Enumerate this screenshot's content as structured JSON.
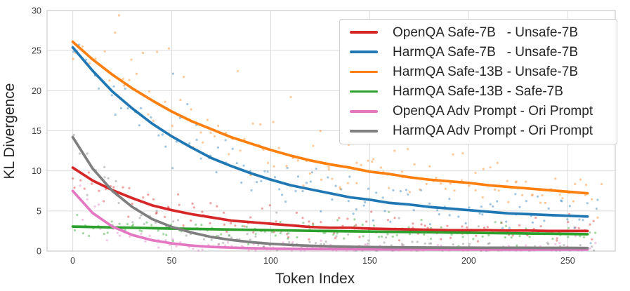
{
  "chart_data": {
    "type": "line",
    "title": "",
    "xlabel": "Token Index",
    "ylabel": "KL Divergence",
    "xlim": [
      -13,
      274
    ],
    "ylim": [
      0,
      30
    ],
    "x_ticks": [
      0,
      50,
      100,
      150,
      200,
      250
    ],
    "y_ticks": [
      0,
      5,
      10,
      15,
      20,
      25,
      30
    ],
    "grid": true,
    "grid_color": "#dcdcdc",
    "spine_color": "#d0d0d0",
    "tick_label_color": "#3d3d3d",
    "legend_position": "upper right",
    "x": [
      0,
      10,
      20,
      30,
      40,
      50,
      60,
      70,
      80,
      90,
      100,
      110,
      120,
      130,
      140,
      150,
      160,
      170,
      180,
      190,
      200,
      210,
      220,
      230,
      240,
      250,
      260
    ],
    "series": [
      {
        "name": "OpenQA Safe-7B   - Unsafe-7B",
        "color": "#d62728",
        "values": [
          10.4,
          8.8,
          7.6,
          6.6,
          5.7,
          5.1,
          4.6,
          4.2,
          3.8,
          3.6,
          3.4,
          3.2,
          3.0,
          2.9,
          2.9,
          2.8,
          2.75,
          2.7,
          2.65,
          2.6,
          2.6,
          2.6,
          2.55,
          2.55,
          2.5,
          2.5,
          2.5
        ],
        "scatter": {
          "seed": 11,
          "count": 128,
          "x_max": 266,
          "rel_noise": 0.18,
          "abs_noise": 0.55,
          "outlier_rate": 0.06,
          "outlier_scale": 1.7
        }
      },
      {
        "name": "HarmQA Safe-7B   - Unsafe-7B",
        "color": "#1f77b4",
        "values": [
          25.4,
          22.5,
          19.9,
          17.8,
          15.9,
          14.3,
          12.9,
          11.6,
          10.6,
          9.7,
          8.9,
          8.2,
          7.7,
          7.2,
          6.7,
          6.4,
          6.0,
          5.8,
          5.5,
          5.3,
          5.1,
          4.9,
          4.7,
          4.6,
          4.5,
          4.4,
          4.3
        ],
        "scatter": {
          "seed": 22,
          "count": 130,
          "x_max": 268,
          "rel_noise": 0.06,
          "abs_noise": 1.35,
          "outlier_rate": 0.06,
          "outlier_scale": 1.9
        }
      },
      {
        "name": "HarmQA Safe-13B - Unsafe-7B",
        "color": "#ff7f0e",
        "values": [
          26.1,
          23.9,
          22.0,
          20.3,
          18.8,
          17.4,
          16.2,
          15.2,
          14.2,
          13.4,
          12.6,
          11.9,
          11.3,
          10.8,
          10.4,
          9.9,
          9.6,
          9.2,
          8.9,
          8.7,
          8.5,
          8.2,
          8.0,
          7.8,
          7.6,
          7.4,
          7.2
        ],
        "scatter": {
          "seed": 33,
          "count": 130,
          "x_max": 268,
          "rel_noise": 0.06,
          "abs_noise": 1.4,
          "outlier_rate": 0.06,
          "outlier_scale": 1.9
        }
      },
      {
        "name": "HarmQA Safe-13B - Safe-7B",
        "color": "#2ca02c",
        "values": [
          3.05,
          3.0,
          2.95,
          2.9,
          2.85,
          2.8,
          2.76,
          2.72,
          2.68,
          2.64,
          2.6,
          2.56,
          2.52,
          2.49,
          2.46,
          2.43,
          2.4,
          2.37,
          2.34,
          2.31,
          2.28,
          2.25,
          2.22,
          2.19,
          2.16,
          2.13,
          2.1
        ],
        "scatter": {
          "seed": 44,
          "count": 126,
          "x_max": 266,
          "rel_noise": 0.12,
          "abs_noise": 0.55,
          "outlier_rate": 0.03,
          "outlier_scale": 1.0
        }
      },
      {
        "name": "OpenQA Adv Prompt - Ori Prompt",
        "color": "#e377c2",
        "values": [
          7.5,
          4.75,
          3.05,
          2.0,
          1.35,
          0.95,
          0.68,
          0.52,
          0.42,
          0.35,
          0.3,
          0.27,
          0.25,
          0.24,
          0.23,
          0.22,
          0.21,
          0.2,
          0.2,
          0.19,
          0.19,
          0.19,
          0.18,
          0.18,
          0.18,
          0.18,
          0.18
        ],
        "scatter": {
          "seed": 55,
          "count": 126,
          "x_max": 266,
          "rel_noise": 0.3,
          "abs_noise": 0.35,
          "outlier_rate": 0.04,
          "outlier_scale": 1.1
        }
      },
      {
        "name": "HarmQA Adv Prompt - Ori Prompt",
        "color": "#7f7f7f",
        "values": [
          14.2,
          10.3,
          7.5,
          5.5,
          4.0,
          3.0,
          2.3,
          1.75,
          1.38,
          1.1,
          0.9,
          0.76,
          0.66,
          0.58,
          0.53,
          0.5,
          0.47,
          0.45,
          0.44,
          0.43,
          0.42,
          0.41,
          0.4,
          0.4,
          0.39,
          0.39,
          0.38
        ],
        "scatter": {
          "seed": 66,
          "count": 128,
          "x_max": 266,
          "rel_noise": 0.22,
          "abs_noise": 0.42,
          "outlier_rate": 0.05,
          "outlier_scale": 1.5
        }
      }
    ]
  }
}
